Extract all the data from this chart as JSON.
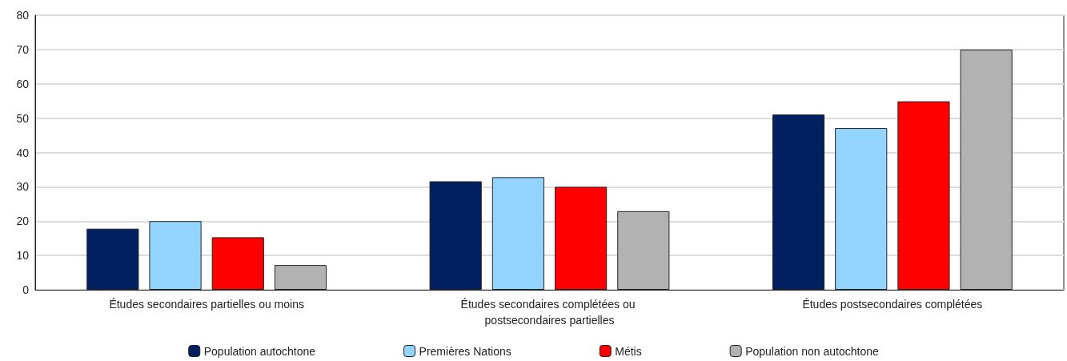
{
  "chart_data": {
    "type": "bar",
    "categories": [
      "Études secondaires partielles ou moins",
      "Études secondaires complétées ou postsecondaires partielles",
      "Études postsecondaires complétées"
    ],
    "series": [
      {
        "name": "Population autochtone",
        "color": "#022060",
        "values": [
          17.8,
          31.6,
          51.1
        ]
      },
      {
        "name": "Premières Nations",
        "color": "#93d5fe",
        "values": [
          20.0,
          32.8,
          47.1
        ]
      },
      {
        "name": "Métis",
        "color": "#ff0000",
        "values": [
          15.3,
          30.0,
          54.9
        ]
      },
      {
        "name": "Population non autochtone",
        "color": "#b2b2b2",
        "values": [
          7.2,
          22.9,
          70.0
        ]
      }
    ],
    "ylim": [
      0,
      80
    ],
    "yticks": [
      0,
      10,
      20,
      30,
      40,
      50,
      60,
      70,
      80
    ],
    "grid": "y",
    "legend": "bottom"
  }
}
